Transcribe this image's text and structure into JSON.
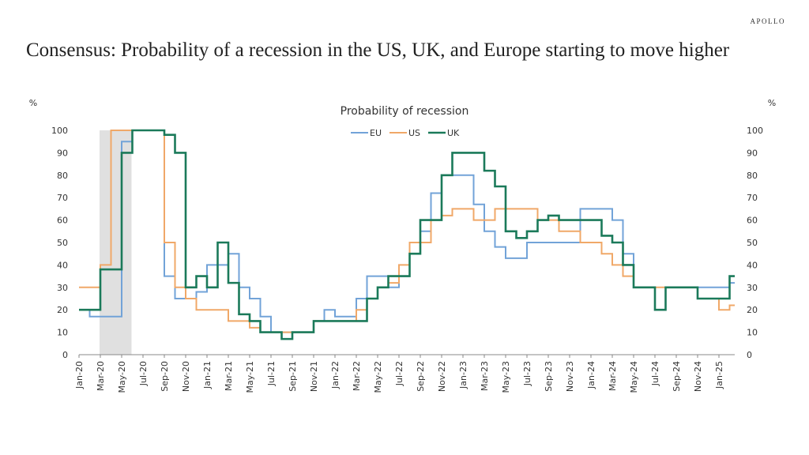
{
  "header": {
    "brand": "APOLLO",
    "title": "Consensus: Probability of a recession in the US, UK, and Europe starting to move higher"
  },
  "chart_data": {
    "type": "line",
    "step": true,
    "title": "Probability of recession",
    "ylabel_left": "%",
    "ylabel_right": "%",
    "ylim": [
      0,
      100
    ],
    "yticks": [
      0,
      10,
      20,
      30,
      40,
      50,
      60,
      70,
      80,
      90,
      100
    ],
    "grid": false,
    "legend_position": "top-center",
    "recession_shading": [
      "Mar-20",
      "May-20"
    ],
    "recession_color": "#e0e0e0",
    "x": [
      "Jan-20",
      "Feb-20",
      "Mar-20",
      "Apr-20",
      "May-20",
      "Jun-20",
      "Jul-20",
      "Aug-20",
      "Sep-20",
      "Oct-20",
      "Nov-20",
      "Dec-20",
      "Jan-21",
      "Feb-21",
      "Mar-21",
      "Apr-21",
      "May-21",
      "Jun-21",
      "Jul-21",
      "Aug-21",
      "Sep-21",
      "Oct-21",
      "Nov-21",
      "Dec-21",
      "Jan-22",
      "Feb-22",
      "Mar-22",
      "Apr-22",
      "May-22",
      "Jun-22",
      "Jul-22",
      "Aug-22",
      "Sep-22",
      "Oct-22",
      "Nov-22",
      "Dec-22",
      "Jan-23",
      "Feb-23",
      "Mar-23",
      "Apr-23",
      "May-23",
      "Jun-23",
      "Jul-23",
      "Aug-23",
      "Sep-23",
      "Oct-23",
      "Nov-23",
      "Dec-23",
      "Jan-24",
      "Feb-24",
      "Mar-24",
      "Apr-24",
      "May-24",
      "Jun-24",
      "Jul-24",
      "Aug-24",
      "Sep-24",
      "Oct-24",
      "Nov-24",
      "Dec-24",
      "Jan-25",
      "Feb-25"
    ],
    "xtick_labels": [
      "Jan-20",
      "Mar-20",
      "May-20",
      "Jul-20",
      "Sep-20",
      "Nov-20",
      "Jan-21",
      "Mar-21",
      "May-21",
      "Jul-21",
      "Sep-21",
      "Nov-21",
      "Jan-22",
      "Mar-22",
      "May-22",
      "Jul-22",
      "Sep-22",
      "Nov-22",
      "Jan-23",
      "Mar-23",
      "May-23",
      "Jul-23",
      "Sep-23",
      "Nov-23",
      "Jan-24",
      "Mar-24",
      "May-24",
      "Jul-24",
      "Sep-24",
      "Nov-24",
      "Jan-25"
    ],
    "series": [
      {
        "name": "EU",
        "color": "#72a3d8",
        "values": [
          20,
          17,
          17,
          17,
          95,
          100,
          100,
          100,
          35,
          25,
          25,
          28,
          40,
          40,
          45,
          30,
          25,
          17,
          10,
          10,
          10,
          10,
          15,
          20,
          17,
          17,
          25,
          35,
          35,
          30,
          35,
          45,
          55,
          72,
          80,
          80,
          80,
          67,
          55,
          48,
          43,
          43,
          50,
          50,
          50,
          50,
          50,
          65,
          65,
          65,
          60,
          45,
          30,
          30,
          20,
          30,
          30,
          30,
          30,
          30,
          30,
          32
        ]
      },
      {
        "name": "US",
        "color": "#f0a868",
        "values": [
          30,
          30,
          40,
          100,
          100,
          100,
          100,
          100,
          50,
          30,
          25,
          20,
          20,
          20,
          15,
          15,
          12,
          10,
          10,
          10,
          10,
          10,
          15,
          15,
          15,
          15,
          20,
          25,
          30,
          32,
          40,
          50,
          50,
          60,
          62,
          65,
          65,
          60,
          60,
          65,
          65,
          65,
          65,
          60,
          60,
          55,
          55,
          50,
          50,
          45,
          40,
          35,
          30,
          30,
          30,
          30,
          30,
          30,
          25,
          25,
          20,
          22
        ]
      },
      {
        "name": "UK",
        "color": "#1b7a5a",
        "values": [
          20,
          20,
          38,
          38,
          90,
          100,
          100,
          100,
          98,
          90,
          30,
          35,
          30,
          50,
          32,
          18,
          15,
          10,
          10,
          7,
          10,
          10,
          15,
          15,
          15,
          15,
          15,
          25,
          30,
          35,
          35,
          45,
          60,
          60,
          80,
          90,
          90,
          90,
          82,
          75,
          55,
          52,
          55,
          60,
          62,
          60,
          60,
          60,
          60,
          53,
          50,
          40,
          30,
          30,
          20,
          30,
          30,
          30,
          25,
          25,
          25,
          35
        ]
      }
    ]
  }
}
